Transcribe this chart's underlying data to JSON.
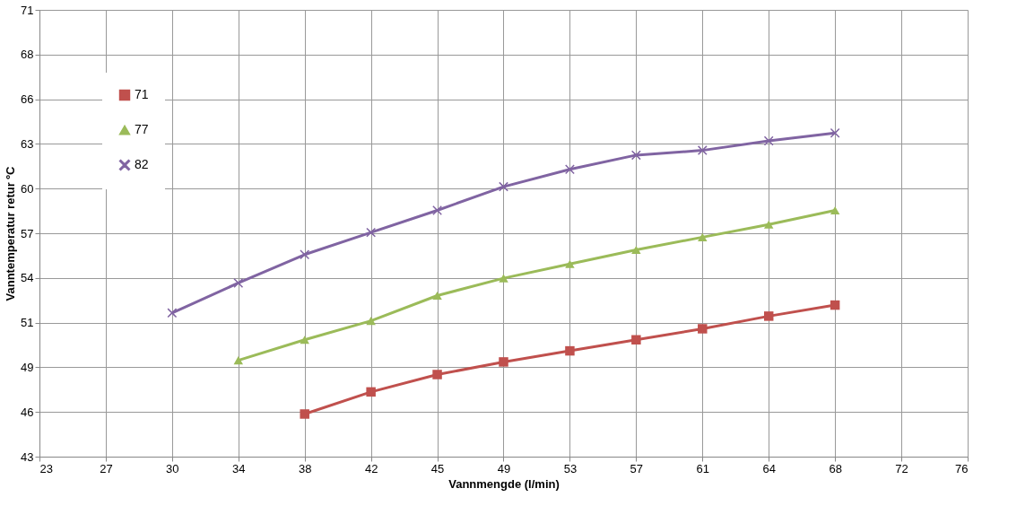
{
  "chart_data": {
    "type": "line",
    "xlabel": "Vannmengde (l/min)",
    "ylabel": "Vanntemperatur retur ºC",
    "xlim": [
      22.8,
      75.72
    ],
    "ylim": [
      42.9,
      71.2
    ],
    "xticks": [
      {
        "value": 22.8,
        "label": "23"
      },
      {
        "value": 26.58,
        "label": "27"
      },
      {
        "value": 30.36,
        "label": "30"
      },
      {
        "value": 34.14,
        "label": "34"
      },
      {
        "value": 37.92,
        "label": "38"
      },
      {
        "value": 41.7,
        "label": "42"
      },
      {
        "value": 45.48,
        "label": "45"
      },
      {
        "value": 49.26,
        "label": "49"
      },
      {
        "value": 53.04,
        "label": "53"
      },
      {
        "value": 56.82,
        "label": "57"
      },
      {
        "value": 60.6,
        "label": "61"
      },
      {
        "value": 64.38,
        "label": "64"
      },
      {
        "value": 68.16,
        "label": "68"
      },
      {
        "value": 71.94,
        "label": "72"
      },
      {
        "value": 75.72,
        "label": "76"
      }
    ],
    "yticks": [
      {
        "value": 42.9,
        "label": "43"
      },
      {
        "value": 45.73,
        "label": "46"
      },
      {
        "value": 48.56,
        "label": "49"
      },
      {
        "value": 51.39,
        "label": "51"
      },
      {
        "value": 54.22,
        "label": "54"
      },
      {
        "value": 57.05,
        "label": "57"
      },
      {
        "value": 59.88,
        "label": "60"
      },
      {
        "value": 62.71,
        "label": "63"
      },
      {
        "value": 65.54,
        "label": "66"
      },
      {
        "value": 68.37,
        "label": "68"
      },
      {
        "value": 71.2,
        "label": "71"
      }
    ],
    "grid": true,
    "legend": "top left",
    "series": [
      {
        "name": "71",
        "color": "#c0504d",
        "marker": "square",
        "x": [
          37.92,
          41.7,
          45.48,
          49.26,
          53.04,
          56.82,
          60.6,
          64.38,
          68.16
        ],
        "values": [
          45.6,
          47.0,
          48.1,
          48.9,
          49.6,
          50.3,
          51.0,
          51.8,
          52.5
        ]
      },
      {
        "name": "77",
        "color": "#9bbb59",
        "marker": "triangle",
        "x": [
          34.14,
          37.92,
          41.7,
          45.48,
          49.26,
          53.04,
          56.82,
          60.6,
          64.38,
          68.16
        ],
        "values": [
          49.0,
          50.3,
          51.5,
          53.1,
          54.2,
          55.1,
          56.0,
          56.8,
          57.6,
          58.5
        ]
      },
      {
        "name": "82",
        "color": "#8064a2",
        "marker": "cross",
        "x": [
          30.36,
          34.14,
          37.92,
          41.7,
          45.48,
          49.26,
          53.04,
          56.82,
          60.6,
          64.38,
          68.16
        ],
        "values": [
          52.0,
          53.9,
          55.7,
          57.1,
          58.5,
          60.0,
          61.1,
          62.0,
          62.3,
          62.9,
          63.4
        ]
      }
    ]
  }
}
